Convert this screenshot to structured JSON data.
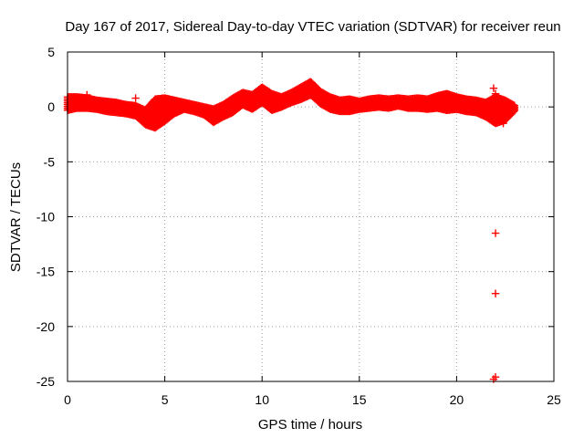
{
  "chart_data": {
    "type": "scatter",
    "title": "Day 167 of 2017, Sidereal Day-to-day VTEC variation (SDTVAR) for receiver reun",
    "xlabel": "GPS time / hours",
    "ylabel": "SDTVAR / TECUs",
    "xlim": [
      0,
      25
    ],
    "ylim": [
      -25,
      5
    ],
    "xticks": [
      0,
      5,
      10,
      15,
      20,
      25
    ],
    "yticks": [
      5,
      0,
      -5,
      -10,
      -15,
      -20,
      -25
    ],
    "xtick_labels": [
      "0",
      "5",
      "10",
      "15",
      "20",
      "25"
    ],
    "ytick_labels": [
      "5",
      "0",
      "-5",
      "-10",
      "-15",
      "-20",
      "-25"
    ],
    "grid": true,
    "marker": "plus",
    "series": [
      {
        "name": "SDTVAR",
        "color": "#ff0000",
        "anchors_upper": [
          [
            0.0,
            0.9
          ],
          [
            0.5,
            0.9
          ],
          [
            1.0,
            0.8
          ],
          [
            1.5,
            0.6
          ],
          [
            2.0,
            0.5
          ],
          [
            2.5,
            0.4
          ],
          [
            3.0,
            0.2
          ],
          [
            3.5,
            0.1
          ],
          [
            4.0,
            -0.3
          ],
          [
            4.5,
            0.7
          ],
          [
            5.0,
            0.8
          ],
          [
            5.5,
            0.6
          ],
          [
            6.0,
            0.4
          ],
          [
            6.5,
            0.2
          ],
          [
            7.0,
            0.0
          ],
          [
            7.5,
            -0.2
          ],
          [
            8.0,
            0.2
          ],
          [
            8.5,
            0.8
          ],
          [
            9.0,
            1.3
          ],
          [
            9.5,
            1.1
          ],
          [
            10.0,
            1.8
          ],
          [
            10.5,
            1.2
          ],
          [
            11.0,
            0.9
          ],
          [
            11.5,
            1.3
          ],
          [
            12.0,
            1.8
          ],
          [
            12.5,
            2.3
          ],
          [
            13.0,
            1.4
          ],
          [
            13.5,
            0.9
          ],
          [
            14.0,
            0.6
          ],
          [
            14.5,
            0.7
          ],
          [
            15.0,
            0.5
          ],
          [
            15.5,
            0.7
          ],
          [
            16.0,
            0.8
          ],
          [
            16.5,
            0.7
          ],
          [
            17.0,
            0.8
          ],
          [
            17.5,
            0.7
          ],
          [
            18.0,
            0.8
          ],
          [
            18.5,
            0.7
          ],
          [
            19.0,
            1.0
          ],
          [
            19.5,
            1.2
          ],
          [
            20.0,
            0.9
          ],
          [
            20.5,
            0.7
          ],
          [
            21.0,
            0.6
          ],
          [
            21.5,
            0.4
          ],
          [
            22.0,
            0.9
          ],
          [
            22.5,
            0.6
          ],
          [
            23.0,
            0.1
          ]
        ],
        "anchors_lower": [
          [
            0.0,
            -0.3
          ],
          [
            0.5,
            -0.1
          ],
          [
            1.0,
            -0.1
          ],
          [
            1.5,
            -0.2
          ],
          [
            2.0,
            -0.4
          ],
          [
            2.5,
            -0.5
          ],
          [
            3.0,
            -0.6
          ],
          [
            3.5,
            -0.8
          ],
          [
            4.0,
            -1.6
          ],
          [
            4.5,
            -1.9
          ],
          [
            5.0,
            -1.3
          ],
          [
            5.5,
            -0.6
          ],
          [
            6.0,
            -0.2
          ],
          [
            6.5,
            -0.4
          ],
          [
            7.0,
            -0.7
          ],
          [
            7.5,
            -1.4
          ],
          [
            8.0,
            -0.9
          ],
          [
            8.5,
            -0.5
          ],
          [
            9.0,
            0.2
          ],
          [
            9.5,
            -0.2
          ],
          [
            10.0,
            0.4
          ],
          [
            10.5,
            -0.3
          ],
          [
            11.0,
            0.0
          ],
          [
            11.5,
            0.4
          ],
          [
            12.0,
            0.7
          ],
          [
            12.5,
            1.1
          ],
          [
            13.0,
            0.3
          ],
          [
            13.5,
            -0.2
          ],
          [
            14.0,
            -0.4
          ],
          [
            14.5,
            -0.4
          ],
          [
            15.0,
            -0.2
          ],
          [
            15.5,
            -0.1
          ],
          [
            16.0,
            0.0
          ],
          [
            16.5,
            -0.1
          ],
          [
            17.0,
            0.1
          ],
          [
            17.5,
            -0.1
          ],
          [
            18.0,
            -0.1
          ],
          [
            18.5,
            -0.2
          ],
          [
            19.0,
            -0.1
          ],
          [
            19.5,
            -0.3
          ],
          [
            20.0,
            -0.2
          ],
          [
            20.5,
            -0.4
          ],
          [
            21.0,
            -0.5
          ],
          [
            21.5,
            -0.9
          ],
          [
            22.0,
            -1.5
          ],
          [
            22.5,
            -1.2
          ],
          [
            23.0,
            -0.3
          ]
        ],
        "outliers": [
          [
            1.0,
            1.1
          ],
          [
            3.5,
            0.8
          ],
          [
            21.9,
            1.7
          ],
          [
            22.0,
            1.2
          ],
          [
            22.4,
            -1.5
          ],
          [
            22.0,
            -11.5
          ],
          [
            22.0,
            -17.0
          ],
          [
            22.0,
            -24.6
          ],
          [
            21.9,
            -24.8
          ]
        ]
      }
    ]
  }
}
